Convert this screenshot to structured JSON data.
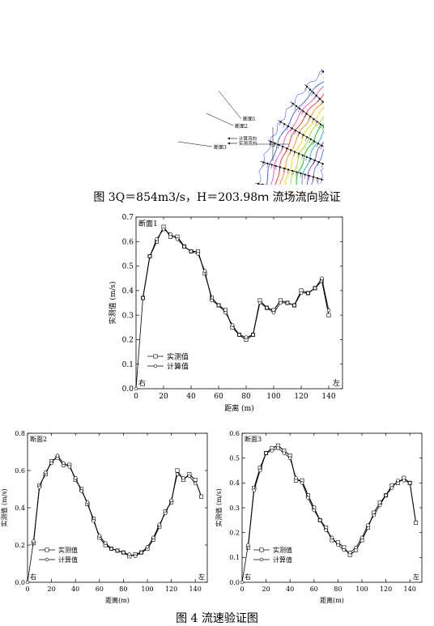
{
  "fig3": {
    "caption": "图 3Q＝854m3/s，H＝203.98ｍ 流场流向验证",
    "labels": {
      "section1": "断面1",
      "section2": "断面2",
      "section3": "断面3",
      "legend_calc": "计算流向",
      "legend_meas": "实测流向"
    }
  },
  "fig4": {
    "caption": "图 4 流速验证图"
  },
  "chart_data": [
    {
      "type": "line",
      "title": "断面1",
      "xlabel": "距离 (m)",
      "ylabel": "实测值 (m/s)",
      "xlim": [
        0,
        150
      ],
      "ylim": [
        0,
        0.7
      ],
      "xticks": [
        0,
        20,
        40,
        60,
        80,
        100,
        120,
        140
      ],
      "yticks": [
        0.0,
        0.1,
        0.2,
        0.3,
        0.4,
        0.5,
        0.6,
        0.7
      ],
      "left_label": "右",
      "right_label": "左",
      "legend_position": "bottom-left",
      "series": [
        {
          "name": "实测值",
          "marker": "square",
          "x": [
            5,
            10,
            15,
            20,
            25,
            30,
            35,
            40,
            45,
            50,
            55,
            60,
            65,
            70,
            75,
            80,
            85,
            90,
            95,
            100,
            105,
            110,
            115,
            120,
            125,
            130,
            135,
            140
          ],
          "y": [
            0.37,
            0.54,
            0.6,
            0.66,
            0.62,
            0.62,
            0.58,
            0.56,
            0.56,
            0.47,
            0.37,
            0.34,
            0.32,
            0.25,
            0.22,
            0.2,
            0.22,
            0.36,
            0.33,
            0.32,
            0.36,
            0.35,
            0.34,
            0.4,
            0.39,
            0.41,
            0.44,
            0.3
          ]
        },
        {
          "name": "计算值",
          "marker": "circle",
          "x": [
            0,
            5,
            10,
            15,
            20,
            25,
            30,
            35,
            40,
            45,
            50,
            55,
            60,
            65,
            70,
            75,
            80,
            85,
            90,
            95,
            100,
            105,
            110,
            115,
            120,
            125,
            130,
            135,
            140
          ],
          "y": [
            0.0,
            0.37,
            0.54,
            0.61,
            0.65,
            0.63,
            0.61,
            0.58,
            0.56,
            0.55,
            0.48,
            0.36,
            0.34,
            0.31,
            0.26,
            0.22,
            0.21,
            0.22,
            0.35,
            0.33,
            0.31,
            0.35,
            0.35,
            0.34,
            0.39,
            0.39,
            0.41,
            0.45,
            0.32
          ]
        }
      ]
    },
    {
      "type": "line",
      "title": "断面2",
      "xlabel": "距离(m)",
      "ylabel": "实测值 (m/s)",
      "xlim": [
        0,
        150
      ],
      "ylim": [
        0,
        0.8
      ],
      "xticks": [
        0,
        20,
        40,
        60,
        80,
        100,
        120,
        140
      ],
      "yticks": [
        0.0,
        0.2,
        0.4,
        0.6,
        0.8
      ],
      "left_label": "右",
      "right_label": "左",
      "legend_position": "bottom-left",
      "series": [
        {
          "name": "实测值",
          "marker": "square",
          "x": [
            5,
            10,
            15,
            20,
            25,
            30,
            35,
            40,
            45,
            50,
            55,
            60,
            65,
            70,
            75,
            80,
            85,
            90,
            95,
            100,
            105,
            110,
            115,
            120,
            125,
            130,
            135,
            140,
            145
          ],
          "y": [
            0.21,
            0.52,
            0.58,
            0.65,
            0.67,
            0.63,
            0.63,
            0.55,
            0.5,
            0.42,
            0.34,
            0.24,
            0.2,
            0.18,
            0.17,
            0.16,
            0.14,
            0.15,
            0.16,
            0.18,
            0.23,
            0.3,
            0.38,
            0.43,
            0.6,
            0.55,
            0.58,
            0.55,
            0.46
          ]
        },
        {
          "name": "计算值",
          "marker": "circle",
          "x": [
            0,
            5,
            10,
            15,
            20,
            25,
            30,
            35,
            40,
            45,
            50,
            55,
            60,
            65,
            70,
            75,
            80,
            85,
            90,
            95,
            100,
            105,
            110,
            115,
            120,
            125,
            130,
            135,
            140
          ],
          "y": [
            0.0,
            0.22,
            0.51,
            0.59,
            0.64,
            0.68,
            0.64,
            0.62,
            0.56,
            0.49,
            0.43,
            0.33,
            0.25,
            0.21,
            0.18,
            0.17,
            0.16,
            0.15,
            0.14,
            0.16,
            0.19,
            0.24,
            0.31,
            0.37,
            0.44,
            0.58,
            0.56,
            0.57,
            0.53
          ]
        }
      ]
    },
    {
      "type": "line",
      "title": "断面3",
      "xlabel": "距离(m)",
      "ylabel": "实测值 (m/s)",
      "xlim": [
        0,
        150
      ],
      "ylim": [
        0,
        0.6
      ],
      "xticks": [
        0,
        20,
        40,
        60,
        80,
        100,
        120,
        140
      ],
      "yticks": [
        0.0,
        0.1,
        0.2,
        0.3,
        0.4,
        0.5,
        0.6
      ],
      "left_label": "右",
      "right_label": "左",
      "legend_position": "bottom-left",
      "series": [
        {
          "name": "实测值",
          "marker": "square",
          "x": [
            5,
            10,
            15,
            20,
            25,
            30,
            35,
            40,
            45,
            50,
            55,
            60,
            65,
            70,
            75,
            80,
            85,
            90,
            95,
            100,
            105,
            110,
            115,
            120,
            125,
            130,
            135,
            140,
            145
          ],
          "y": [
            0.14,
            0.38,
            0.46,
            0.52,
            0.54,
            0.55,
            0.53,
            0.51,
            0.41,
            0.41,
            0.35,
            0.3,
            0.25,
            0.22,
            0.17,
            0.16,
            0.14,
            0.11,
            0.13,
            0.17,
            0.22,
            0.28,
            0.32,
            0.35,
            0.39,
            0.4,
            0.42,
            0.4,
            0.24
          ]
        },
        {
          "name": "计算值",
          "marker": "circle",
          "x": [
            0,
            5,
            10,
            15,
            20,
            25,
            30,
            35,
            40,
            45,
            50,
            55,
            60,
            65,
            70,
            75,
            80,
            85,
            90,
            95,
            100,
            105,
            110,
            115,
            120,
            125,
            130,
            135,
            140
          ],
          "y": [
            0.0,
            0.15,
            0.37,
            0.45,
            0.52,
            0.53,
            0.54,
            0.52,
            0.5,
            0.42,
            0.4,
            0.34,
            0.29,
            0.25,
            0.21,
            0.18,
            0.15,
            0.13,
            0.12,
            0.14,
            0.18,
            0.23,
            0.27,
            0.31,
            0.35,
            0.38,
            0.41,
            0.41,
            0.4
          ]
        }
      ]
    }
  ]
}
